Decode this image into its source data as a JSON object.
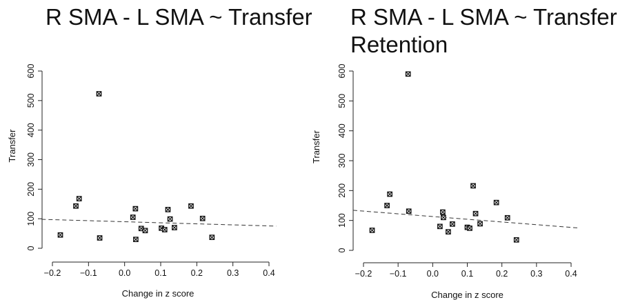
{
  "chart_data": [
    {
      "type": "scatter",
      "title": [
        "R SMA - L SMA ~ Transfer"
      ],
      "xlabel": "Change in z score",
      "ylabel": "Transfer",
      "xlim": [
        -0.2,
        0.4
      ],
      "ylim": [
        0,
        600
      ],
      "xticks": [
        -0.2,
        -0.1,
        0.0,
        0.1,
        0.2,
        0.3,
        0.4
      ],
      "xtick_labels": [
        "−0.2",
        "−0.1",
        "0.0",
        "0.1",
        "0.2",
        "0.3",
        "0.4"
      ],
      "yticks": [
        0,
        100,
        200,
        300,
        400,
        500,
        600
      ],
      "ytick_labels": [
        "0",
        "100",
        "200",
        "300",
        "400",
        "500",
        "600"
      ],
      "grid": false,
      "trendline": {
        "style": "dashed",
        "x": [
          -0.23,
          0.42
        ],
        "y": [
          98,
          75
        ]
      },
      "points": [
        {
          "x": -0.178,
          "y": 45
        },
        {
          "x": -0.135,
          "y": 143
        },
        {
          "x": -0.126,
          "y": 168
        },
        {
          "x": -0.071,
          "y": 523
        },
        {
          "x": -0.069,
          "y": 35
        },
        {
          "x": 0.023,
          "y": 105
        },
        {
          "x": 0.03,
          "y": 134
        },
        {
          "x": 0.031,
          "y": 30
        },
        {
          "x": 0.046,
          "y": 67
        },
        {
          "x": 0.057,
          "y": 60
        },
        {
          "x": 0.102,
          "y": 68
        },
        {
          "x": 0.111,
          "y": 63
        },
        {
          "x": 0.12,
          "y": 131
        },
        {
          "x": 0.126,
          "y": 99
        },
        {
          "x": 0.138,
          "y": 70
        },
        {
          "x": 0.184,
          "y": 143
        },
        {
          "x": 0.216,
          "y": 101
        },
        {
          "x": 0.242,
          "y": 37
        }
      ]
    },
    {
      "type": "scatter",
      "title": [
        "R SMA - L SMA ~ Transfer",
        "Retention"
      ],
      "xlabel": "Change in z score",
      "ylabel": "Transfer",
      "xlim": [
        -0.2,
        0.4
      ],
      "ylim": [
        0,
        600
      ],
      "xticks": [
        -0.2,
        -0.1,
        0.0,
        0.1,
        0.2,
        0.3,
        0.4
      ],
      "xtick_labels": [
        "−0.2",
        "−0.1",
        "0.0",
        "0.1",
        "0.2",
        "0.3",
        "0.4"
      ],
      "yticks": [
        0,
        100,
        200,
        300,
        400,
        500,
        600
      ],
      "ytick_labels": [
        "0",
        "100",
        "200",
        "300",
        "400",
        "500",
        "600"
      ],
      "grid": false,
      "trendline": {
        "style": "dashed",
        "x": [
          -0.23,
          0.42
        ],
        "y": [
          134,
          75
        ]
      },
      "points": [
        {
          "x": -0.175,
          "y": 67
        },
        {
          "x": -0.132,
          "y": 150
        },
        {
          "x": -0.124,
          "y": 188
        },
        {
          "x": -0.071,
          "y": 590
        },
        {
          "x": -0.069,
          "y": 131
        },
        {
          "x": 0.021,
          "y": 80
        },
        {
          "x": 0.029,
          "y": 128
        },
        {
          "x": 0.031,
          "y": 110
        },
        {
          "x": 0.045,
          "y": 62
        },
        {
          "x": 0.057,
          "y": 88
        },
        {
          "x": 0.1,
          "y": 77
        },
        {
          "x": 0.107,
          "y": 74
        },
        {
          "x": 0.117,
          "y": 216
        },
        {
          "x": 0.124,
          "y": 123
        },
        {
          "x": 0.137,
          "y": 89
        },
        {
          "x": 0.184,
          "y": 160
        },
        {
          "x": 0.216,
          "y": 109
        },
        {
          "x": 0.242,
          "y": 35
        }
      ]
    }
  ]
}
